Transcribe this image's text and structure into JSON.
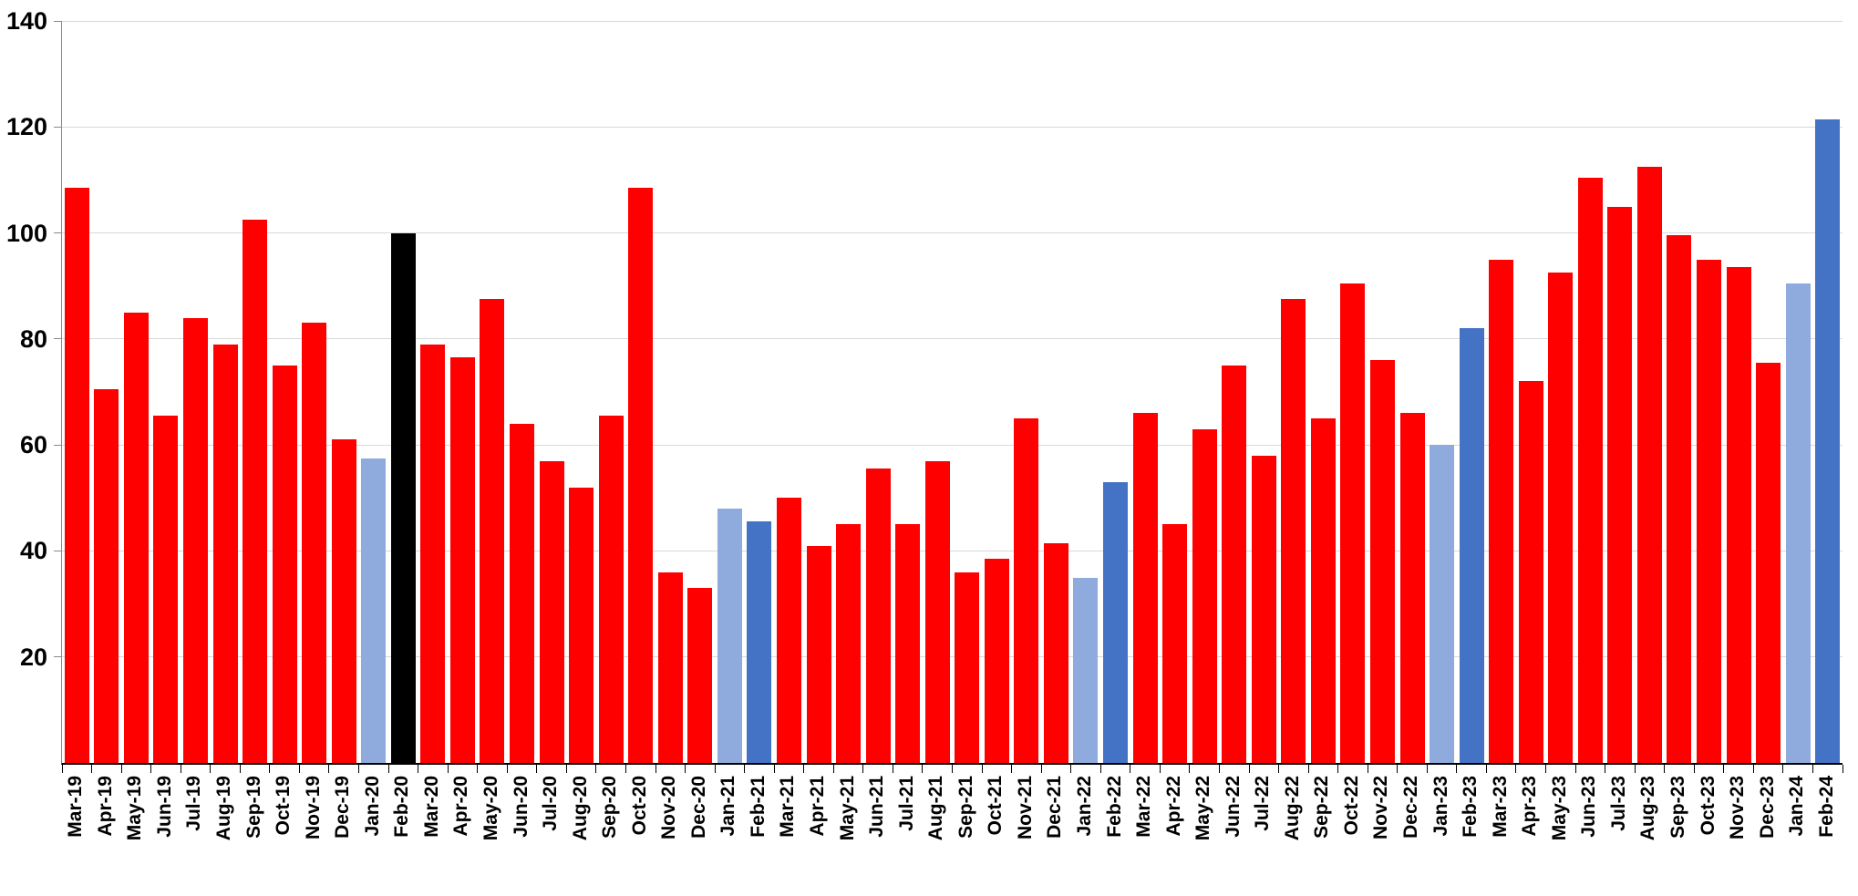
{
  "chart_data": {
    "type": "bar",
    "title": "",
    "xlabel": "",
    "ylabel": "",
    "ylim": [
      0,
      140
    ],
    "y_ticks": [
      20,
      40,
      60,
      80,
      100,
      120,
      140
    ],
    "grid": "horizontal",
    "legend_position": "none",
    "categories": [
      "Mar-19",
      "Apr-19",
      "May-19",
      "Jun-19",
      "Jul-19",
      "Aug-19",
      "Sep-19",
      "Oct-19",
      "Nov-19",
      "Dec-19",
      "Jan-20",
      "Feb-20",
      "Mar-20",
      "Apr-20",
      "May-20",
      "Jun-20",
      "Jul-20",
      "Aug-20",
      "Sep-20",
      "Oct-20",
      "Nov-20",
      "Dec-20",
      "Jan-21",
      "Feb-21",
      "Mar-21",
      "Apr-21",
      "May-21",
      "Jun-21",
      "Jul-21",
      "Aug-21",
      "Sep-21",
      "Oct-21",
      "Nov-21",
      "Dec-21",
      "Jan-22",
      "Feb-22",
      "Mar-22",
      "Apr-22",
      "May-22",
      "Jun-22",
      "Jul-22",
      "Aug-22",
      "Sep-22",
      "Oct-22",
      "Nov-22",
      "Dec-22",
      "Jan-23",
      "Feb-23",
      "Mar-23",
      "Apr-23",
      "May-23",
      "Jun-23",
      "Jul-23",
      "Aug-23",
      "Sep-23",
      "Oct-23",
      "Nov-23",
      "Dec-23",
      "Jan-24",
      "Feb-24"
    ],
    "values": [
      108.5,
      70.5,
      85,
      65.5,
      84,
      79,
      102.5,
      75,
      83,
      61,
      57.5,
      100,
      79,
      76.5,
      87.5,
      64,
      57,
      52,
      65.5,
      108.5,
      36,
      33,
      48,
      45.5,
      50,
      41,
      45,
      55.5,
      45,
      57,
      36,
      38.5,
      65,
      41.5,
      35,
      53,
      66,
      45,
      63,
      75,
      58,
      87.5,
      65,
      90.5,
      76,
      66,
      60,
      82,
      95,
      72,
      92.5,
      110.5,
      105,
      112.5,
      99.5,
      95,
      93.5,
      75.5,
      90.5,
      121.5
    ],
    "bar_colors": [
      "#FF0000",
      "#FF0000",
      "#FF0000",
      "#FF0000",
      "#FF0000",
      "#FF0000",
      "#FF0000",
      "#FF0000",
      "#FF0000",
      "#FF0000",
      "#8FAADC",
      "#000000",
      "#FF0000",
      "#FF0000",
      "#FF0000",
      "#FF0000",
      "#FF0000",
      "#FF0000",
      "#FF0000",
      "#FF0000",
      "#FF0000",
      "#FF0000",
      "#8FAADC",
      "#4472C4",
      "#FF0000",
      "#FF0000",
      "#FF0000",
      "#FF0000",
      "#FF0000",
      "#FF0000",
      "#FF0000",
      "#FF0000",
      "#FF0000",
      "#FF0000",
      "#8FAADC",
      "#4472C4",
      "#FF0000",
      "#FF0000",
      "#FF0000",
      "#FF0000",
      "#FF0000",
      "#FF0000",
      "#FF0000",
      "#FF0000",
      "#FF0000",
      "#FF0000",
      "#8FAADC",
      "#4472C4",
      "#FF0000",
      "#FF0000",
      "#FF0000",
      "#FF0000",
      "#FF0000",
      "#FF0000",
      "#FF0000",
      "#FF0000",
      "#FF0000",
      "#FF0000",
      "#8FAADC",
      "#4472C4"
    ],
    "colors": {
      "default_bar": "#FF0000",
      "january_bar": "#8FAADC",
      "february_bar": "#4472C4",
      "base_month_bar": "#000000",
      "gridline": "#D9D9D9",
      "x_axis_line": "#000000",
      "y_axis_line": "#8A8A8A",
      "tick": "#000000",
      "label_text": "#000000"
    }
  }
}
